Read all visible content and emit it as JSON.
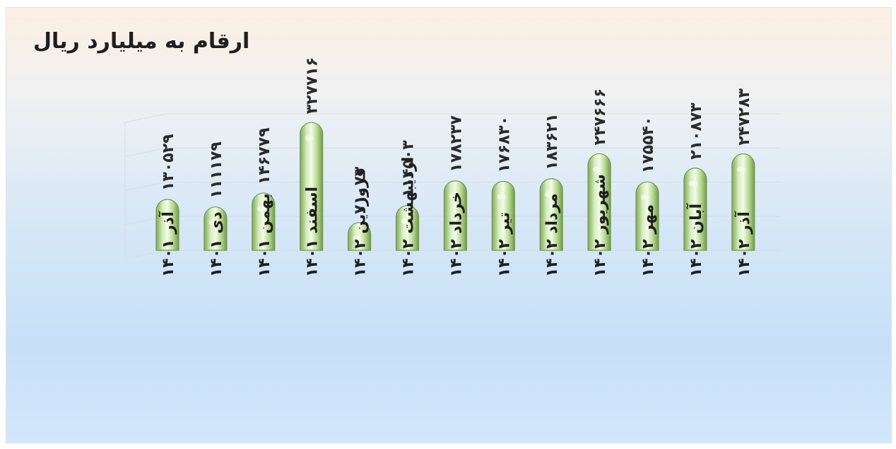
{
  "chart_data": {
    "type": "bar",
    "title": "ارقام به میلیارد ریال",
    "categories": [
      "آذر ۱۴۰۱",
      "دی ۱۴۰۱",
      "بهمن ۱۴۰۱",
      "اسفند ۱۴۰۱",
      "فروردین ۱۴۰۲",
      "اردیبهشت ۱۴۰۲",
      "خرداد ۱۴۰۲",
      "تیر ۱۴۰۲",
      "مرداد ۱۴۰۲",
      "شهریور ۱۴۰۲",
      "مهر ۱۴۰۲",
      "آبان ۱۴۰۲",
      "آذر ۱۴۰۲"
    ],
    "values": [
      130529,
      111179,
      146779,
      327716,
      71073,
      114503,
      178237,
      176830,
      183621,
      247666,
      175540,
      210873,
      247283
    ],
    "value_labels": [
      "۱۳۰۵۲۹",
      "۱۱۱۱۷۹",
      "۱۴۶۷۷۹",
      "۳۲۷۷۱۶",
      "۷۱۰۷۳",
      "۱۱۴۵۰۳",
      "۱۷۸۲۳۷",
      "۱۷۶۸۳۰",
      "۱۸۳۶۲۱",
      "۲۴۷۶۶۶",
      "۱۷۵۵۴۰",
      "۲۱۰۸۷۳",
      "۲۴۷۲۸۳"
    ],
    "ylim": [
      0,
      350000
    ],
    "grid": true,
    "legend": "none",
    "bar_color": "#b6d98f",
    "bar_edge_color": "#6f9a4d",
    "bar_highlight": "#f3fbe8"
  }
}
